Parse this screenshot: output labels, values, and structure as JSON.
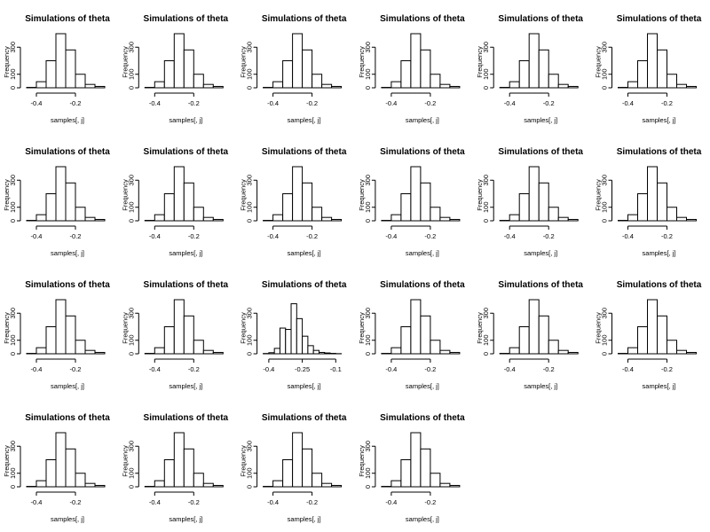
{
  "chart_data": {
    "type": "bar",
    "layout": "grid of 22 histograms, 6 per row",
    "panel_title": "Simulations of theta",
    "xlabel": "samples[, j]",
    "ylabel": "Frequency",
    "grid": false,
    "panels": [
      {
        "breaks": [
          -0.45,
          -0.4,
          -0.35,
          -0.3,
          -0.25,
          -0.2,
          -0.15,
          -0.1,
          -0.05
        ],
        "counts": [
          3,
          45,
          200,
          400,
          280,
          100,
          25,
          10
        ],
        "xticks": [
          -0.4,
          -0.2
        ],
        "yticks": [
          0,
          100,
          300
        ],
        "ylim": [
          0,
          400
        ]
      },
      {
        "breaks": [
          -0.45,
          -0.4,
          -0.35,
          -0.3,
          -0.25,
          -0.2,
          -0.15,
          -0.1,
          -0.05
        ],
        "counts": [
          3,
          45,
          200,
          400,
          280,
          100,
          25,
          10
        ],
        "xticks": [
          -0.4,
          -0.2
        ],
        "yticks": [
          0,
          100,
          300
        ],
        "ylim": [
          0,
          400
        ]
      },
      {
        "breaks": [
          -0.45,
          -0.4,
          -0.35,
          -0.3,
          -0.25,
          -0.2,
          -0.15,
          -0.1,
          -0.05
        ],
        "counts": [
          3,
          45,
          200,
          400,
          280,
          100,
          25,
          10
        ],
        "xticks": [
          -0.4,
          -0.2
        ],
        "yticks": [
          0,
          100,
          300
        ],
        "ylim": [
          0,
          400
        ]
      },
      {
        "breaks": [
          -0.45,
          -0.4,
          -0.35,
          -0.3,
          -0.25,
          -0.2,
          -0.15,
          -0.1,
          -0.05
        ],
        "counts": [
          3,
          45,
          200,
          400,
          280,
          100,
          25,
          10
        ],
        "xticks": [
          -0.4,
          -0.2
        ],
        "yticks": [
          0,
          100,
          300
        ],
        "ylim": [
          0,
          400
        ]
      },
      {
        "breaks": [
          -0.45,
          -0.4,
          -0.35,
          -0.3,
          -0.25,
          -0.2,
          -0.15,
          -0.1,
          -0.05
        ],
        "counts": [
          3,
          45,
          200,
          400,
          280,
          100,
          25,
          10
        ],
        "xticks": [
          -0.4,
          -0.2
        ],
        "yticks": [
          0,
          100,
          300
        ],
        "ylim": [
          0,
          400
        ]
      },
      {
        "breaks": [
          -0.45,
          -0.4,
          -0.35,
          -0.3,
          -0.25,
          -0.2,
          -0.15,
          -0.1,
          -0.05
        ],
        "counts": [
          3,
          45,
          200,
          400,
          280,
          100,
          25,
          10
        ],
        "xticks": [
          -0.4,
          -0.2
        ],
        "yticks": [
          0,
          100,
          300
        ],
        "ylim": [
          0,
          400
        ]
      },
      {
        "breaks": [
          -0.45,
          -0.4,
          -0.35,
          -0.3,
          -0.25,
          -0.2,
          -0.15,
          -0.1,
          -0.05
        ],
        "counts": [
          3,
          45,
          200,
          400,
          280,
          100,
          25,
          10
        ],
        "xticks": [
          -0.4,
          -0.2
        ],
        "yticks": [
          0,
          100,
          300
        ],
        "ylim": [
          0,
          400
        ]
      },
      {
        "breaks": [
          -0.45,
          -0.4,
          -0.35,
          -0.3,
          -0.25,
          -0.2,
          -0.15,
          -0.1,
          -0.05
        ],
        "counts": [
          3,
          45,
          200,
          400,
          280,
          100,
          25,
          10
        ],
        "xticks": [
          -0.4,
          -0.2
        ],
        "yticks": [
          0,
          100,
          300
        ],
        "ylim": [
          0,
          400
        ]
      },
      {
        "breaks": [
          -0.45,
          -0.4,
          -0.35,
          -0.3,
          -0.25,
          -0.2,
          -0.15,
          -0.1,
          -0.05
        ],
        "counts": [
          3,
          45,
          200,
          400,
          280,
          100,
          25,
          10
        ],
        "xticks": [
          -0.4,
          -0.2
        ],
        "yticks": [
          0,
          100,
          300
        ],
        "ylim": [
          0,
          400
        ]
      },
      {
        "breaks": [
          -0.45,
          -0.4,
          -0.35,
          -0.3,
          -0.25,
          -0.2,
          -0.15,
          -0.1,
          -0.05
        ],
        "counts": [
          3,
          45,
          200,
          400,
          280,
          100,
          25,
          10
        ],
        "xticks": [
          -0.4,
          -0.2
        ],
        "yticks": [
          0,
          100,
          300
        ],
        "ylim": [
          0,
          400
        ]
      },
      {
        "breaks": [
          -0.45,
          -0.4,
          -0.35,
          -0.3,
          -0.25,
          -0.2,
          -0.15,
          -0.1,
          -0.05
        ],
        "counts": [
          3,
          45,
          200,
          400,
          280,
          100,
          25,
          10
        ],
        "xticks": [
          -0.4,
          -0.2
        ],
        "yticks": [
          0,
          100,
          300
        ],
        "ylim": [
          0,
          400
        ]
      },
      {
        "breaks": [
          -0.45,
          -0.4,
          -0.35,
          -0.3,
          -0.25,
          -0.2,
          -0.15,
          -0.1,
          -0.05
        ],
        "counts": [
          3,
          45,
          200,
          400,
          280,
          100,
          25,
          10
        ],
        "xticks": [
          -0.4,
          -0.2
        ],
        "yticks": [
          0,
          100,
          300
        ],
        "ylim": [
          0,
          400
        ]
      },
      {
        "breaks": [
          -0.45,
          -0.4,
          -0.35,
          -0.3,
          -0.25,
          -0.2,
          -0.15,
          -0.1,
          -0.05
        ],
        "counts": [
          3,
          45,
          200,
          400,
          280,
          100,
          25,
          10
        ],
        "xticks": [
          -0.4,
          -0.2
        ],
        "yticks": [
          0,
          100,
          300
        ],
        "ylim": [
          0,
          400
        ]
      },
      {
        "breaks": [
          -0.45,
          -0.4,
          -0.35,
          -0.3,
          -0.25,
          -0.2,
          -0.15,
          -0.1,
          -0.05
        ],
        "counts": [
          3,
          45,
          200,
          400,
          280,
          100,
          25,
          10
        ],
        "xticks": [
          -0.4,
          -0.2
        ],
        "yticks": [
          0,
          100,
          300
        ],
        "ylim": [
          0,
          400
        ]
      },
      {
        "breaks": [
          -0.425,
          -0.4,
          -0.375,
          -0.35,
          -0.325,
          -0.3,
          -0.275,
          -0.25,
          -0.225,
          -0.2,
          -0.175,
          -0.15,
          -0.125,
          -0.1,
          -0.075
        ],
        "counts": [
          2,
          8,
          40,
          190,
          180,
          370,
          260,
          130,
          60,
          25,
          10,
          6,
          3,
          1
        ],
        "xticks": [
          -0.4,
          -0.25,
          -0.1
        ],
        "yticks": [
          0,
          100,
          300
        ],
        "ylim": [
          0,
          400
        ]
      },
      {
        "breaks": [
          -0.45,
          -0.4,
          -0.35,
          -0.3,
          -0.25,
          -0.2,
          -0.15,
          -0.1,
          -0.05
        ],
        "counts": [
          3,
          45,
          200,
          400,
          280,
          100,
          25,
          10
        ],
        "xticks": [
          -0.4,
          -0.2
        ],
        "yticks": [
          0,
          100,
          300
        ],
        "ylim": [
          0,
          400
        ]
      },
      {
        "breaks": [
          -0.45,
          -0.4,
          -0.35,
          -0.3,
          -0.25,
          -0.2,
          -0.15,
          -0.1,
          -0.05
        ],
        "counts": [
          3,
          45,
          200,
          400,
          280,
          100,
          25,
          10
        ],
        "xticks": [
          -0.4,
          -0.2
        ],
        "yticks": [
          0,
          100,
          300
        ],
        "ylim": [
          0,
          400
        ]
      },
      {
        "breaks": [
          -0.45,
          -0.4,
          -0.35,
          -0.3,
          -0.25,
          -0.2,
          -0.15,
          -0.1,
          -0.05
        ],
        "counts": [
          3,
          45,
          200,
          400,
          280,
          100,
          25,
          10
        ],
        "xticks": [
          -0.4,
          -0.2
        ],
        "yticks": [
          0,
          100,
          300
        ],
        "ylim": [
          0,
          400
        ]
      },
      {
        "breaks": [
          -0.45,
          -0.4,
          -0.35,
          -0.3,
          -0.25,
          -0.2,
          -0.15,
          -0.1,
          -0.05
        ],
        "counts": [
          3,
          45,
          200,
          400,
          280,
          100,
          25,
          10
        ],
        "xticks": [
          -0.4,
          -0.2
        ],
        "yticks": [
          0,
          100,
          300
        ],
        "ylim": [
          0,
          400
        ]
      },
      {
        "breaks": [
          -0.45,
          -0.4,
          -0.35,
          -0.3,
          -0.25,
          -0.2,
          -0.15,
          -0.1,
          -0.05
        ],
        "counts": [
          3,
          45,
          200,
          400,
          280,
          100,
          25,
          10
        ],
        "xticks": [
          -0.4,
          -0.2
        ],
        "yticks": [
          0,
          100,
          300
        ],
        "ylim": [
          0,
          400
        ]
      },
      {
        "breaks": [
          -0.45,
          -0.4,
          -0.35,
          -0.3,
          -0.25,
          -0.2,
          -0.15,
          -0.1,
          -0.05
        ],
        "counts": [
          3,
          45,
          200,
          400,
          280,
          100,
          25,
          10
        ],
        "xticks": [
          -0.4,
          -0.2
        ],
        "yticks": [
          0,
          100,
          300
        ],
        "ylim": [
          0,
          400
        ]
      },
      {
        "breaks": [
          -0.45,
          -0.4,
          -0.35,
          -0.3,
          -0.25,
          -0.2,
          -0.15,
          -0.1,
          -0.05
        ],
        "counts": [
          3,
          45,
          200,
          400,
          280,
          100,
          25,
          10
        ],
        "xticks": [
          -0.4,
          -0.2
        ],
        "yticks": [
          0,
          100,
          300
        ],
        "ylim": [
          0,
          400
        ]
      }
    ]
  }
}
